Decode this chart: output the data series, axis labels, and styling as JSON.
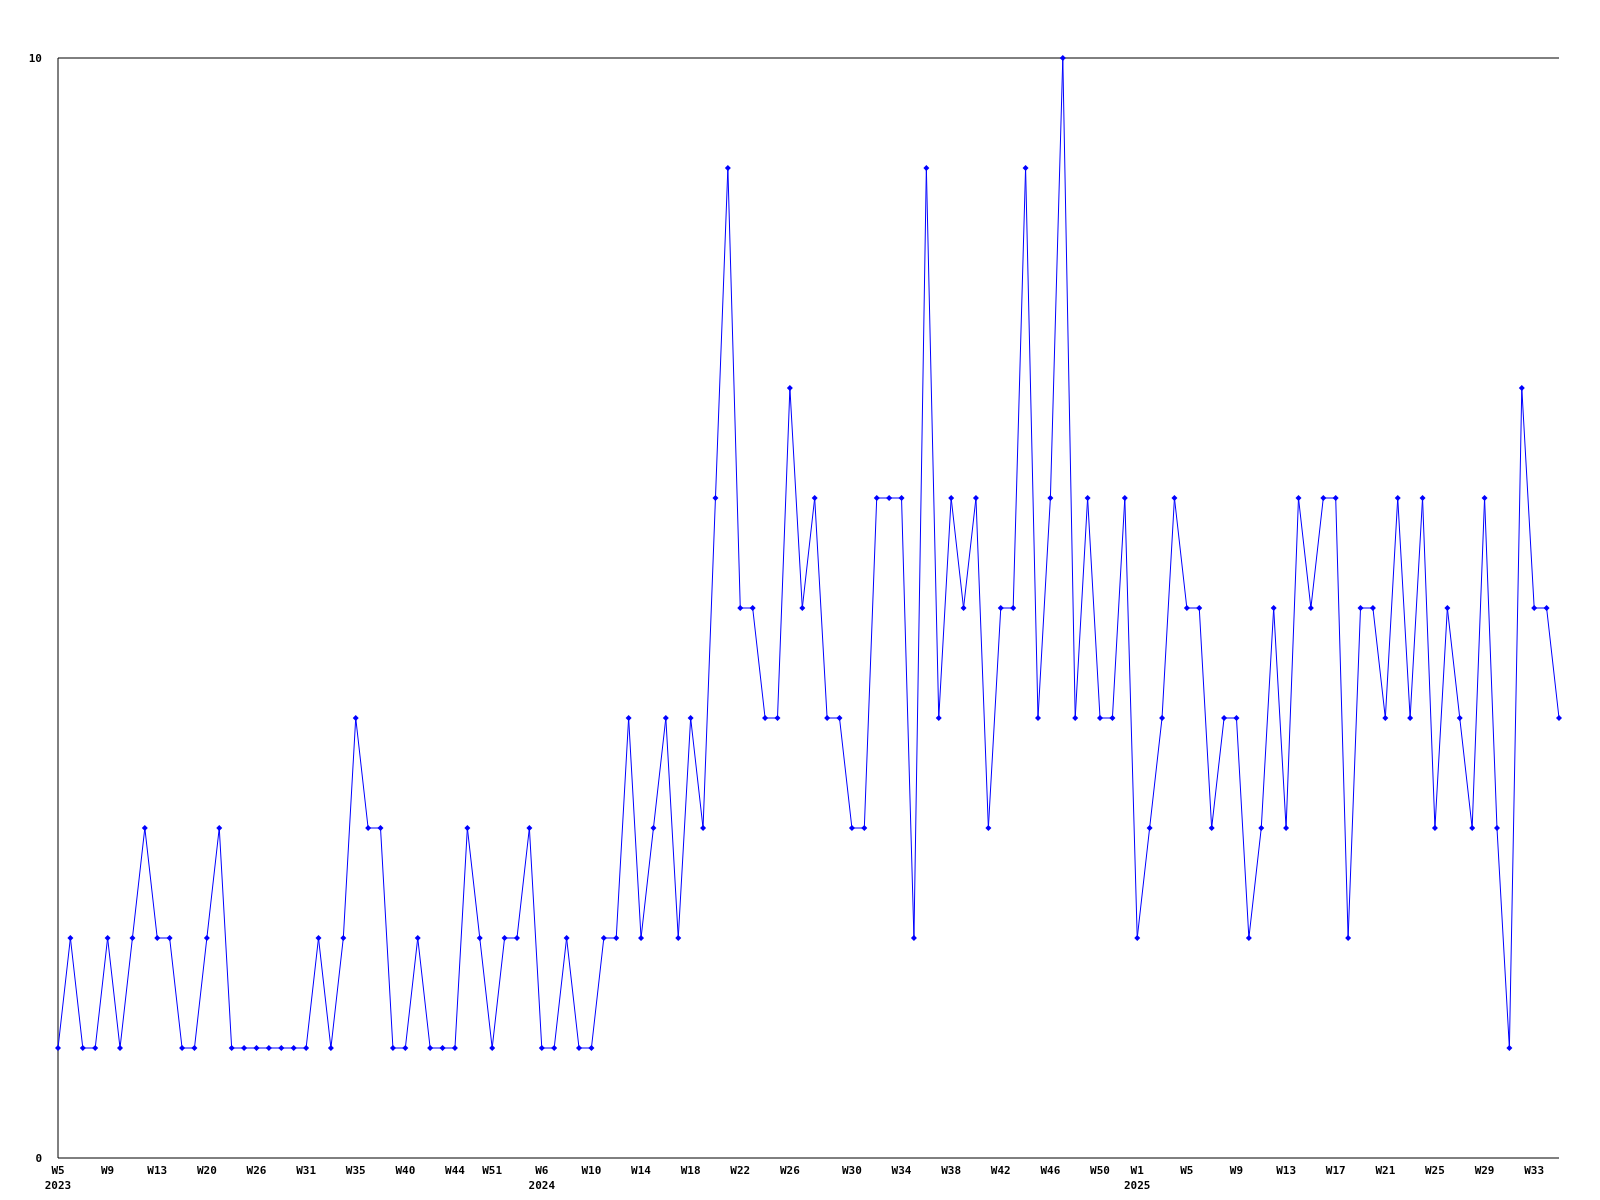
{
  "chart_data": {
    "type": "line",
    "categories": [
      "W5\n2023",
      null,
      null,
      null,
      "W9",
      null,
      null,
      null,
      "W13",
      null,
      null,
      null,
      "W20",
      null,
      null,
      null,
      "W26",
      null,
      null,
      null,
      "W31",
      null,
      null,
      null,
      "W35",
      null,
      null,
      null,
      "W40",
      null,
      null,
      null,
      "W44",
      null,
      null,
      "W51",
      null,
      null,
      null,
      "W6\n2024",
      null,
      null,
      null,
      "W10",
      null,
      null,
      null,
      "W14",
      null,
      null,
      null,
      "W18",
      null,
      null,
      null,
      "W22",
      null,
      null,
      null,
      "W26",
      null,
      null,
      null,
      null,
      "W30",
      null,
      null,
      null,
      "W34",
      null,
      null,
      null,
      "W38",
      null,
      null,
      null,
      "W42",
      null,
      null,
      null,
      "W46",
      null,
      null,
      null,
      "W50",
      null,
      null,
      "W1\n2025",
      null,
      null,
      null,
      "W5",
      null,
      null,
      null,
      "W9",
      null,
      null,
      null,
      "W13",
      null,
      null,
      null,
      "W17",
      null,
      null,
      null,
      "W21",
      null,
      null,
      null,
      "W25",
      null,
      null,
      null,
      "W29",
      null,
      null,
      null,
      "W33",
      null,
      null
    ],
    "series": [
      {
        "color": "#0000ff",
        "values": [
          1,
          2,
          1,
          1,
          2,
          1,
          2,
          3,
          2,
          2,
          1,
          1,
          2,
          3,
          1,
          1,
          1,
          1,
          1,
          1,
          1,
          2,
          1,
          2,
          4,
          3,
          3,
          1,
          1,
          2,
          1,
          1,
          1,
          3,
          2,
          1,
          2,
          2,
          3,
          1,
          1,
          2,
          1,
          1,
          2,
          2,
          4,
          2,
          3,
          4,
          2,
          4,
          3,
          6,
          9,
          5,
          5,
          4,
          4,
          7,
          5,
          6,
          4,
          4,
          3,
          3,
          6,
          6,
          6,
          2,
          9,
          4,
          6,
          5,
          6,
          3,
          5,
          5,
          9,
          4,
          6,
          10,
          4,
          6,
          4,
          4,
          6,
          2,
          3,
          4,
          6,
          5,
          5,
          3,
          4,
          4,
          2,
          3,
          5,
          3,
          6,
          5,
          6,
          6,
          2,
          5,
          5,
          4,
          6,
          4,
          6,
          3,
          5,
          4,
          3,
          6,
          3,
          1,
          7,
          5,
          5,
          4
        ]
      }
    ],
    "ylim": [
      0,
      10
    ],
    "yticks": [
      0,
      10
    ],
    "grid": false,
    "marker": "diamond",
    "line_style": "solid"
  }
}
